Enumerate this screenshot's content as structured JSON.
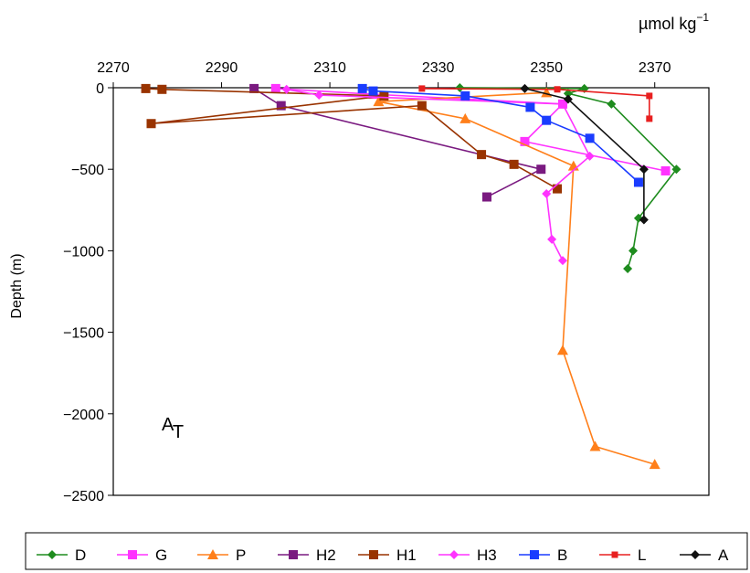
{
  "chart_data": {
    "type": "line",
    "x_axis": {
      "position": "top",
      "unit_label": "µmol kg",
      "unit_exponent": "−1",
      "range": [
        2270,
        2380
      ],
      "ticks": [
        2270,
        2290,
        2310,
        2330,
        2350,
        2370
      ],
      "tick_labels": [
        "2270",
        "2290",
        "2310",
        "2330",
        "2350",
        "2370"
      ]
    },
    "y_axis": {
      "label": "Depth (m)",
      "range": [
        -2500,
        0
      ],
      "ticks": [
        0,
        -500,
        -1000,
        -1500,
        -2000,
        -2500
      ],
      "tick_labels": [
        "0",
        "−500",
        "−1000",
        "−1500",
        "−2000",
        "−2500"
      ]
    },
    "annotation": {
      "main": "A",
      "sub": "T"
    },
    "legend_position": "bottom",
    "series": [
      {
        "name": "D",
        "color": "#1e8c1e",
        "marker": "diamond",
        "points": [
          [
            2334,
            0
          ],
          [
            2357,
            -5
          ],
          [
            2354,
            -35
          ],
          [
            2362,
            -100
          ],
          [
            2374,
            -500
          ],
          [
            2367,
            -800
          ],
          [
            2366,
            -1000
          ],
          [
            2365,
            -1110
          ]
        ]
      },
      {
        "name": "G",
        "color": "#ff33ff",
        "marker": "square",
        "points": [
          [
            2300,
            -5
          ],
          [
            2318,
            -40
          ],
          [
            2353,
            -100
          ],
          [
            2346,
            -330
          ],
          [
            2372,
            -510
          ]
        ]
      },
      {
        "name": "P",
        "color": "#ff7f1a",
        "marker": "triangle",
        "points": [
          [
            2350,
            -30
          ],
          [
            2319,
            -85
          ],
          [
            2335,
            -190
          ],
          [
            2355,
            -480
          ],
          [
            2353,
            -1610
          ],
          [
            2359,
            -2200
          ],
          [
            2370,
            -2310
          ]
        ]
      },
      {
        "name": "H2",
        "color": "#7a1a80",
        "marker": "square",
        "points": [
          [
            2296,
            -5
          ],
          [
            2301,
            -110
          ],
          [
            2349,
            -500
          ],
          [
            2339,
            -670
          ]
        ]
      },
      {
        "name": "H1",
        "color": "#993300",
        "marker": "square",
        "points": [
          [
            2276,
            -5
          ],
          [
            2279,
            -10
          ],
          [
            2320,
            -50
          ],
          [
            2277,
            -220
          ],
          [
            2327,
            -110
          ],
          [
            2338,
            -410
          ],
          [
            2344,
            -470
          ],
          [
            2352,
            -620
          ]
        ]
      },
      {
        "name": "H3",
        "color": "#ff33ff",
        "marker": "diamond",
        "points": [
          [
            2302,
            -10
          ],
          [
            2308,
            -45
          ],
          [
            2353,
            -100
          ],
          [
            2358,
            -420
          ],
          [
            2350,
            -650
          ],
          [
            2351,
            -930
          ],
          [
            2353,
            -1060
          ]
        ]
      },
      {
        "name": "B",
        "color": "#1a3cff",
        "marker": "square",
        "points": [
          [
            2316,
            -5
          ],
          [
            2318,
            -20
          ],
          [
            2335,
            -50
          ],
          [
            2347,
            -120
          ],
          [
            2350,
            -200
          ],
          [
            2358,
            -310
          ],
          [
            2367,
            -580
          ]
        ]
      },
      {
        "name": "L",
        "color": "#e82020",
        "marker": "smallsquare",
        "points": [
          [
            2327,
            -5
          ],
          [
            2352,
            -10
          ],
          [
            2369,
            -50
          ],
          [
            2369,
            -190
          ]
        ]
      },
      {
        "name": "A",
        "color": "#111111",
        "marker": "diamond",
        "points": [
          [
            2346,
            -5
          ],
          [
            2354,
            -70
          ],
          [
            2368,
            -500
          ],
          [
            2368,
            -810
          ]
        ]
      }
    ]
  }
}
